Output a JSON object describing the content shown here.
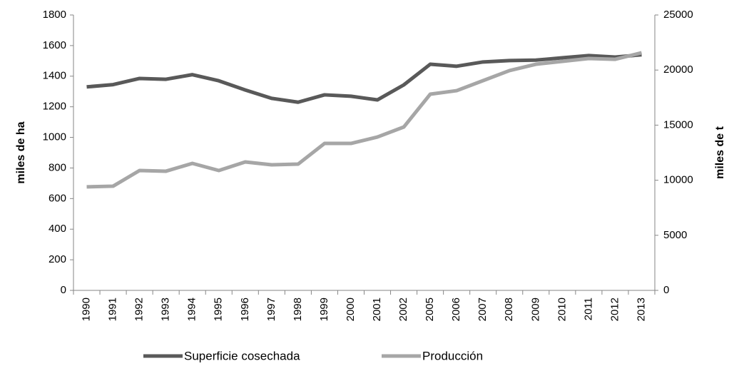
{
  "chart_data": {
    "type": "line",
    "categories": [
      "1990",
      "1991",
      "1992",
      "1993",
      "1994",
      "1995",
      "1996",
      "1997",
      "1998",
      "1999",
      "2000",
      "2001",
      "2002",
      "2005",
      "2006",
      "2007",
      "2008",
      "2009",
      "2010",
      "2011",
      "2012",
      "2013"
    ],
    "series": [
      {
        "name": "Superficie cosechada",
        "color": "#595959",
        "axis": "y",
        "values": [
          1330,
          1345,
          1385,
          1380,
          1410,
          1370,
          1310,
          1255,
          1230,
          1278,
          1269,
          1245,
          1343,
          1478,
          1465,
          1493,
          1502,
          1505,
          1520,
          1535,
          1525,
          1540
        ]
      },
      {
        "name": "Producción",
        "color": "#a6a6a6",
        "axis": "y2",
        "values": [
          9400,
          9460,
          10880,
          10820,
          11530,
          10880,
          11660,
          11400,
          11460,
          13340,
          13340,
          13920,
          14830,
          17810,
          18130,
          19040,
          19950,
          20530,
          20790,
          21050,
          20980,
          21570
        ]
      }
    ],
    "ylabel": "miles de ha",
    "y2label": "miles de t",
    "ylim": [
      0,
      1800
    ],
    "yticks": [
      0,
      200,
      400,
      600,
      800,
      1000,
      1200,
      1400,
      1600,
      1800
    ],
    "y2lim": [
      0,
      25000
    ],
    "y2ticks": [
      0,
      5000,
      10000,
      15000,
      20000,
      25000
    ],
    "grid": false,
    "legend": "bottom"
  }
}
